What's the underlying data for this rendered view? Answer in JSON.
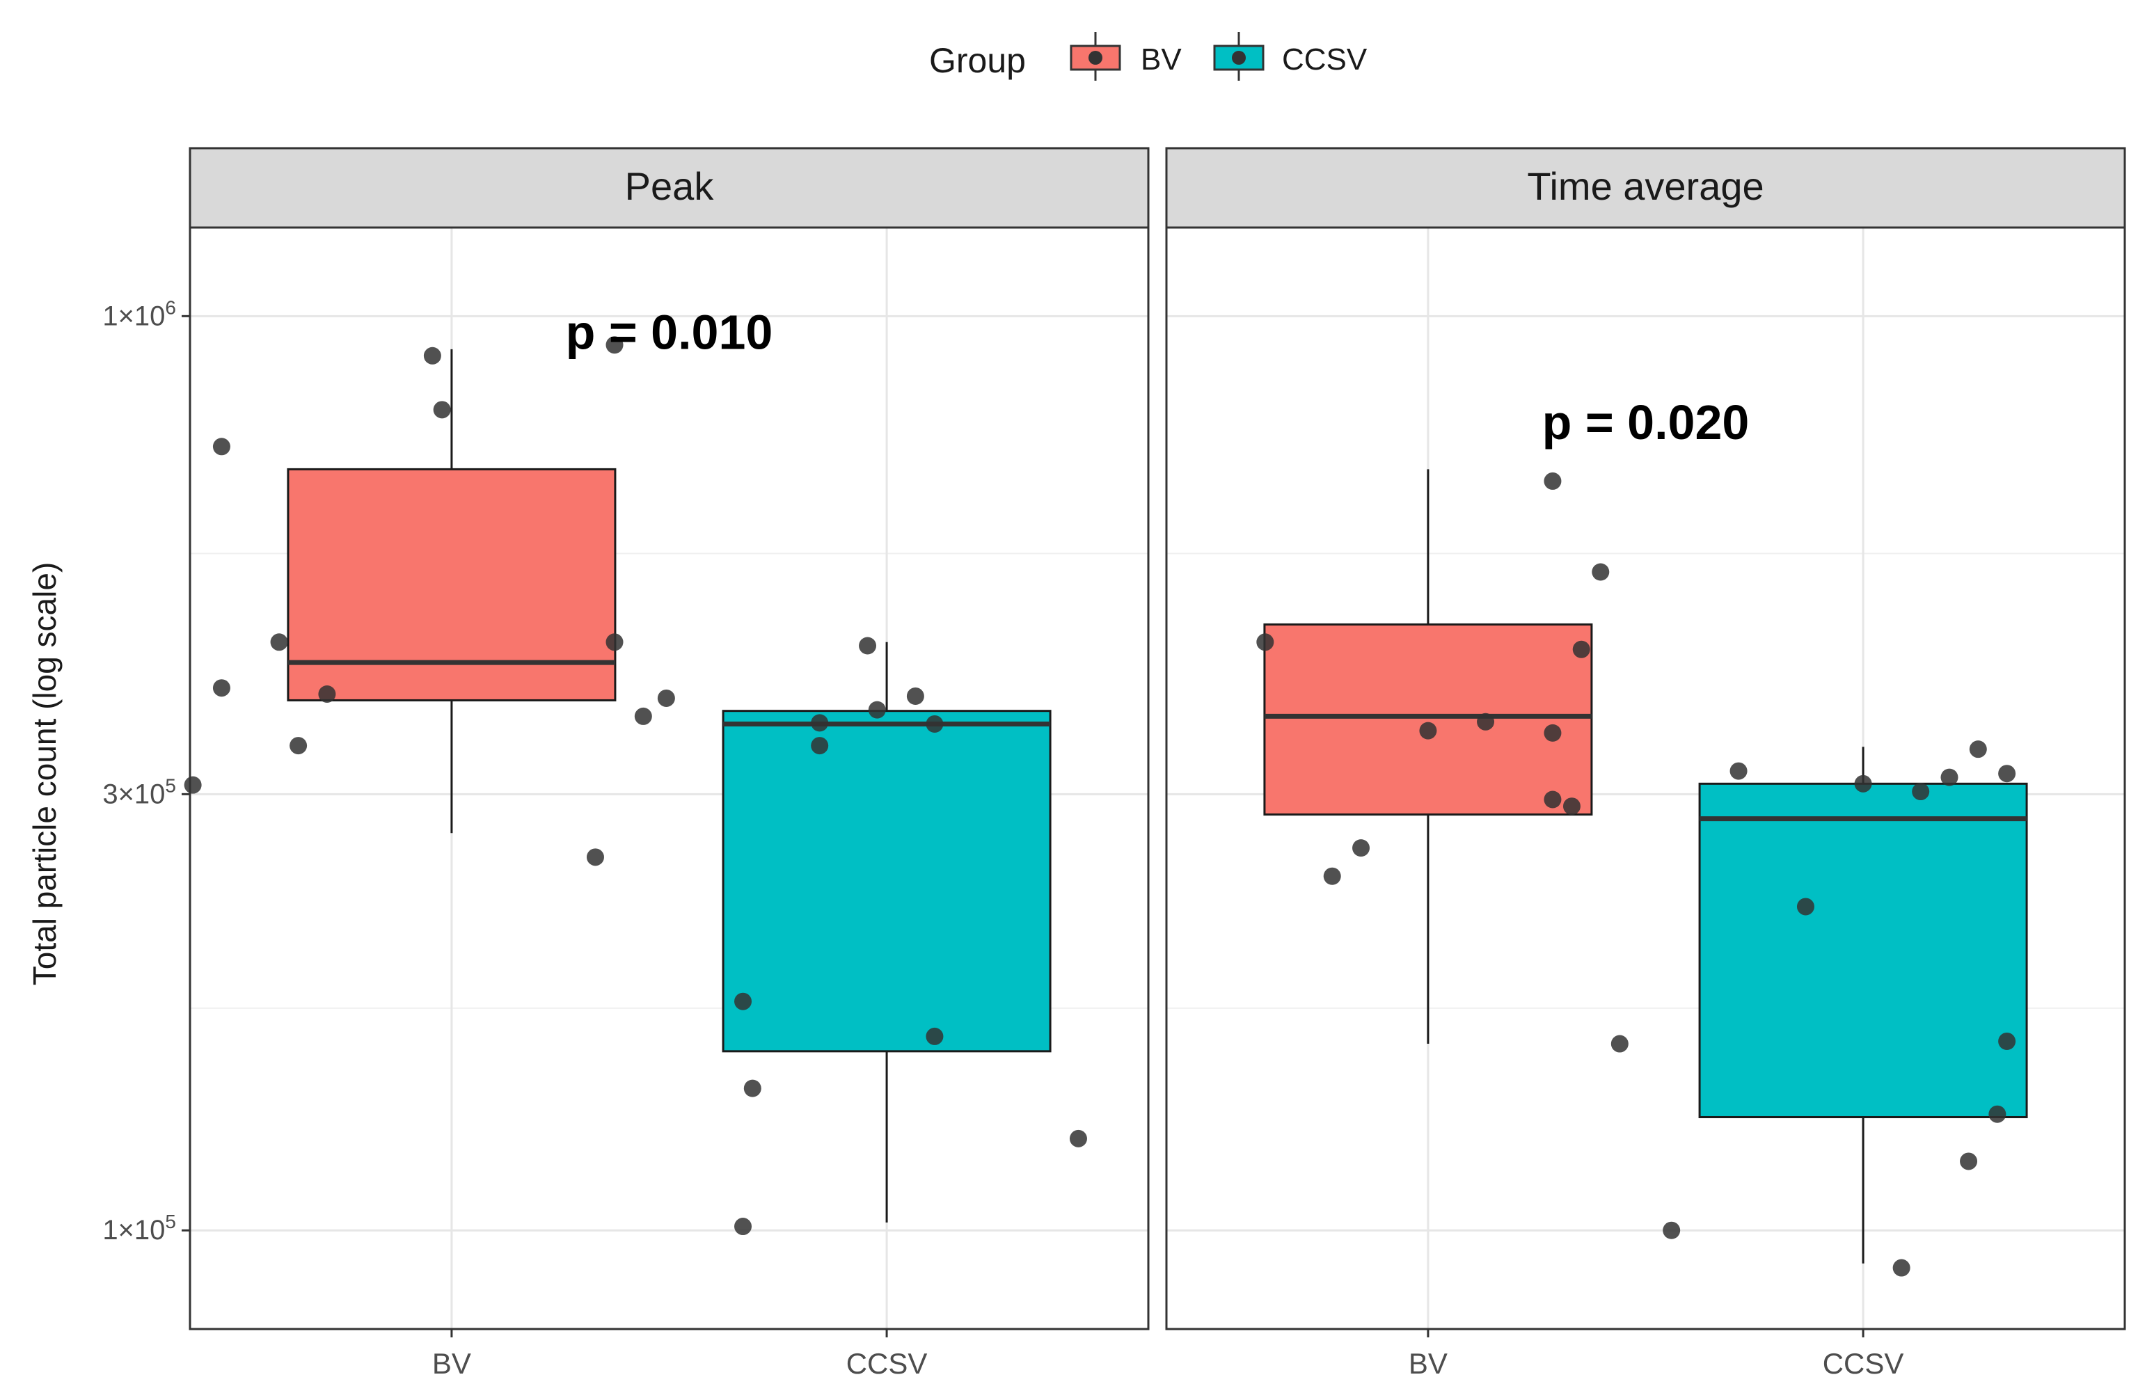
{
  "chart_data": {
    "type": "box",
    "ylabel": "Total particle count (log scale)",
    "yscale": "log10",
    "ylim": [
      78000,
      1250000
    ],
    "yticks": [
      {
        "value": 100000,
        "label_base": "1×10",
        "label_exp": "5"
      },
      {
        "value": 300000,
        "label_base": "3×10",
        "label_exp": "5"
      },
      {
        "value": 1000000,
        "label_base": "1×10",
        "label_exp": "6"
      }
    ],
    "minor_gridlines": [
      175000,
      550000
    ],
    "categories": [
      "BV",
      "CCSV"
    ],
    "legend": {
      "title": "Group",
      "position": "top",
      "entries": [
        {
          "label": "BV",
          "color": "#F8766D"
        },
        {
          "label": "CCSV",
          "color": "#00BFC4"
        }
      ]
    },
    "point_color": "#333333",
    "panels": [
      {
        "title": "Peak",
        "annotation": "p = 0.010",
        "annotation_y": 960000,
        "boxes": [
          {
            "category": "BV",
            "color": "#F8766D",
            "min": 272000,
            "q1": 380000,
            "median": 418000,
            "q3": 680000,
            "max": 920000,
            "points": [
              {
                "dx": 0.17,
                "y": 930000
              },
              {
                "dx": -0.02,
                "y": 905000
              },
              {
                "dx": -0.01,
                "y": 790000
              },
              {
                "dx": -0.24,
                "y": 720000
              },
              {
                "dx": -0.18,
                "y": 440000
              },
              {
                "dx": 0.17,
                "y": 440000
              },
              {
                "dx": -0.24,
                "y": 392000
              },
              {
                "dx": -0.13,
                "y": 386000
              },
              {
                "dx": 0.2,
                "y": 365000
              },
              {
                "dx": -0.16,
                "y": 339000
              },
              {
                "dx": -0.27,
                "y": 307000
              },
              {
                "dx": 0.15,
                "y": 256000
              }
            ]
          },
          {
            "category": "CCSV",
            "color": "#00BFC4",
            "min": 102000,
            "q1": 157000,
            "median": 358000,
            "q3": 370000,
            "max": 440000,
            "points": [
              {
                "dx": -0.02,
                "y": 436000
              },
              {
                "dx": -0.23,
                "y": 382000
              },
              {
                "dx": 0.03,
                "y": 384000
              },
              {
                "dx": -0.01,
                "y": 371000
              },
              {
                "dx": -0.07,
                "y": 359000
              },
              {
                "dx": 0.05,
                "y": 358000
              },
              {
                "dx": -0.07,
                "y": 339000
              },
              {
                "dx": -0.15,
                "y": 178000
              },
              {
                "dx": 0.05,
                "y": 163000
              },
              {
                "dx": -0.14,
                "y": 143000
              },
              {
                "dx": 0.2,
                "y": 126000
              },
              {
                "dx": -0.15,
                "y": 101000
              }
            ]
          }
        ]
      },
      {
        "title": "Time average",
        "annotation": "p = 0.020",
        "annotation_y": 765000,
        "boxes": [
          {
            "category": "BV",
            "color": "#F8766D",
            "min": 160000,
            "q1": 285000,
            "median": 365000,
            "q3": 460000,
            "max": 680000,
            "points": [
              {
                "dx": 0.13,
                "y": 660000
              },
              {
                "dx": 0.18,
                "y": 525000
              },
              {
                "dx": -0.17,
                "y": 440000
              },
              {
                "dx": 0.16,
                "y": 432000
              },
              {
                "dx": 0.06,
                "y": 360000
              },
              {
                "dx": 0.0,
                "y": 352000
              },
              {
                "dx": 0.13,
                "y": 350000
              },
              {
                "dx": 0.13,
                "y": 296000
              },
              {
                "dx": 0.15,
                "y": 291000
              },
              {
                "dx": -0.07,
                "y": 262000
              },
              {
                "dx": -0.1,
                "y": 244000
              },
              {
                "dx": 0.2,
                "y": 160000
              }
            ]
          },
          {
            "category": "CCSV",
            "color": "#00BFC4",
            "min": 92000,
            "q1": 133000,
            "median": 282000,
            "q3": 308000,
            "max": 338000,
            "points": [
              {
                "dx": 0.12,
                "y": 336000
              },
              {
                "dx": -0.13,
                "y": 318000
              },
              {
                "dx": 0.0,
                "y": 308000
              },
              {
                "dx": 0.09,
                "y": 313000
              },
              {
                "dx": 0.15,
                "y": 316000
              },
              {
                "dx": 0.06,
                "y": 302000
              },
              {
                "dx": -0.06,
                "y": 226000
              },
              {
                "dx": 0.15,
                "y": 161000
              },
              {
                "dx": 0.14,
                "y": 134000
              },
              {
                "dx": 0.11,
                "y": 119000
              },
              {
                "dx": -0.2,
                "y": 100000
              },
              {
                "dx": 0.04,
                "y": 91000
              }
            ]
          }
        ]
      }
    ]
  }
}
